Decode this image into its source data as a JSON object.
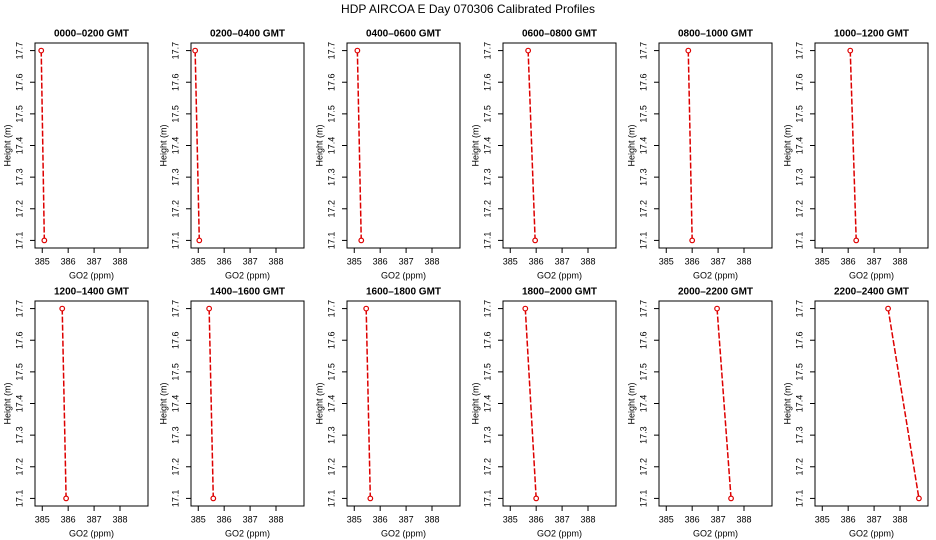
{
  "title": "HDP AIRCOA E  Day 070306  Calibrated Profiles",
  "chart_data": [
    {
      "type": "line",
      "title": "0000–0200 GMT",
      "xlabel": "GO2 (ppm)",
      "ylabel": "Height (m)",
      "x": [
        384.96,
        385.08
      ],
      "values": [
        17.7,
        17.1
      ],
      "color": "#dd0000",
      "xlim": [
        384.72,
        389.08
      ],
      "ylim": [
        17.076,
        17.724
      ],
      "xticks": [
        385,
        386,
        387,
        388
      ],
      "yticks": [
        17.1,
        17.2,
        17.3,
        17.4,
        17.5,
        17.6,
        17.7
      ]
    },
    {
      "type": "line",
      "title": "0200–0400 GMT",
      "xlabel": "GO2 (ppm)",
      "ylabel": "Height (m)",
      "x": [
        384.88,
        385.04
      ],
      "values": [
        17.7,
        17.1
      ],
      "color": "#dd0000",
      "xlim": [
        384.72,
        389.08
      ],
      "ylim": [
        17.076,
        17.724
      ],
      "xticks": [
        385,
        386,
        387,
        388
      ],
      "yticks": [
        17.1,
        17.2,
        17.3,
        17.4,
        17.5,
        17.6,
        17.7
      ]
    },
    {
      "type": "line",
      "title": "0400–0600 GMT",
      "xlabel": "GO2 (ppm)",
      "ylabel": "Height (m)",
      "x": [
        385.12,
        385.27
      ],
      "values": [
        17.7,
        17.1
      ],
      "color": "#dd0000",
      "xlim": [
        384.72,
        389.08
      ],
      "ylim": [
        17.076,
        17.724
      ],
      "xticks": [
        385,
        386,
        387,
        388
      ],
      "yticks": [
        17.1,
        17.2,
        17.3,
        17.4,
        17.5,
        17.6,
        17.7
      ]
    },
    {
      "type": "line",
      "title": "0600–0800 GMT",
      "xlabel": "GO2 (ppm)",
      "ylabel": "Height (m)",
      "x": [
        385.69,
        385.96
      ],
      "values": [
        17.7,
        17.1
      ],
      "color": "#dd0000",
      "xlim": [
        384.72,
        389.08
      ],
      "ylim": [
        17.076,
        17.724
      ],
      "xticks": [
        385,
        386,
        387,
        388
      ],
      "yticks": [
        17.1,
        17.2,
        17.3,
        17.4,
        17.5,
        17.6,
        17.7
      ]
    },
    {
      "type": "line",
      "title": "0800–1000 GMT",
      "xlabel": "GO2 (ppm)",
      "ylabel": "Height (m)",
      "x": [
        385.85,
        386.0
      ],
      "values": [
        17.7,
        17.1
      ],
      "color": "#dd0000",
      "xlim": [
        384.72,
        389.08
      ],
      "ylim": [
        17.076,
        17.724
      ],
      "xticks": [
        385,
        386,
        387,
        388
      ],
      "yticks": [
        17.1,
        17.2,
        17.3,
        17.4,
        17.5,
        17.6,
        17.7
      ]
    },
    {
      "type": "line",
      "title": "1000–1200 GMT",
      "xlabel": "GO2 (ppm)",
      "ylabel": "Height (m)",
      "x": [
        386.08,
        386.31
      ],
      "values": [
        17.7,
        17.1
      ],
      "color": "#dd0000",
      "xlim": [
        384.72,
        389.08
      ],
      "ylim": [
        17.076,
        17.724
      ],
      "xticks": [
        385,
        386,
        387,
        388
      ],
      "yticks": [
        17.1,
        17.2,
        17.3,
        17.4,
        17.5,
        17.6,
        17.7
      ]
    },
    {
      "type": "line",
      "title": "1200–1400 GMT",
      "xlabel": "GO2 (ppm)",
      "ylabel": "Height (m)",
      "x": [
        385.77,
        385.92
      ],
      "values": [
        17.7,
        17.1
      ],
      "color": "#dd0000",
      "xlim": [
        384.72,
        389.08
      ],
      "ylim": [
        17.076,
        17.724
      ],
      "xticks": [
        385,
        386,
        387,
        388
      ],
      "yticks": [
        17.1,
        17.2,
        17.3,
        17.4,
        17.5,
        17.6,
        17.7
      ]
    },
    {
      "type": "line",
      "title": "1400–1600 GMT",
      "xlabel": "GO2 (ppm)",
      "ylabel": "Height (m)",
      "x": [
        385.42,
        385.58
      ],
      "values": [
        17.7,
        17.1
      ],
      "color": "#dd0000",
      "xlim": [
        384.72,
        389.08
      ],
      "ylim": [
        17.076,
        17.724
      ],
      "xticks": [
        385,
        386,
        387,
        388
      ],
      "yticks": [
        17.1,
        17.2,
        17.3,
        17.4,
        17.5,
        17.6,
        17.7
      ]
    },
    {
      "type": "line",
      "title": "1600–1800 GMT",
      "xlabel": "GO2 (ppm)",
      "ylabel": "Height (m)",
      "x": [
        385.46,
        385.62
      ],
      "values": [
        17.7,
        17.1
      ],
      "color": "#dd0000",
      "xlim": [
        384.72,
        389.08
      ],
      "ylim": [
        17.076,
        17.724
      ],
      "xticks": [
        385,
        386,
        387,
        388
      ],
      "yticks": [
        17.1,
        17.2,
        17.3,
        17.4,
        17.5,
        17.6,
        17.7
      ]
    },
    {
      "type": "line",
      "title": "1800–2000 GMT",
      "xlabel": "GO2 (ppm)",
      "ylabel": "Height (m)",
      "x": [
        385.58,
        386.0
      ],
      "values": [
        17.7,
        17.1
      ],
      "color": "#dd0000",
      "xlim": [
        384.72,
        389.08
      ],
      "ylim": [
        17.076,
        17.724
      ],
      "xticks": [
        385,
        386,
        387,
        388
      ],
      "yticks": [
        17.1,
        17.2,
        17.3,
        17.4,
        17.5,
        17.6,
        17.7
      ]
    },
    {
      "type": "line",
      "title": "2000–2200 GMT",
      "xlabel": "GO2 (ppm)",
      "ylabel": "Height (m)",
      "x": [
        386.96,
        387.5
      ],
      "values": [
        17.7,
        17.1
      ],
      "color": "#dd0000",
      "xlim": [
        384.72,
        389.08
      ],
      "ylim": [
        17.076,
        17.724
      ],
      "xticks": [
        385,
        386,
        387,
        388
      ],
      "yticks": [
        17.1,
        17.2,
        17.3,
        17.4,
        17.5,
        17.6,
        17.7
      ]
    },
    {
      "type": "line",
      "title": "2200–2400 GMT",
      "xlabel": "GO2 (ppm)",
      "ylabel": "Height (m)",
      "x": [
        387.54,
        388.73
      ],
      "values": [
        17.7,
        17.1
      ],
      "color": "#dd0000",
      "xlim": [
        384.72,
        389.08
      ],
      "ylim": [
        17.076,
        17.724
      ],
      "xticks": [
        385,
        386,
        387,
        388
      ],
      "yticks": [
        17.1,
        17.2,
        17.3,
        17.4,
        17.5,
        17.6,
        17.7
      ]
    }
  ]
}
